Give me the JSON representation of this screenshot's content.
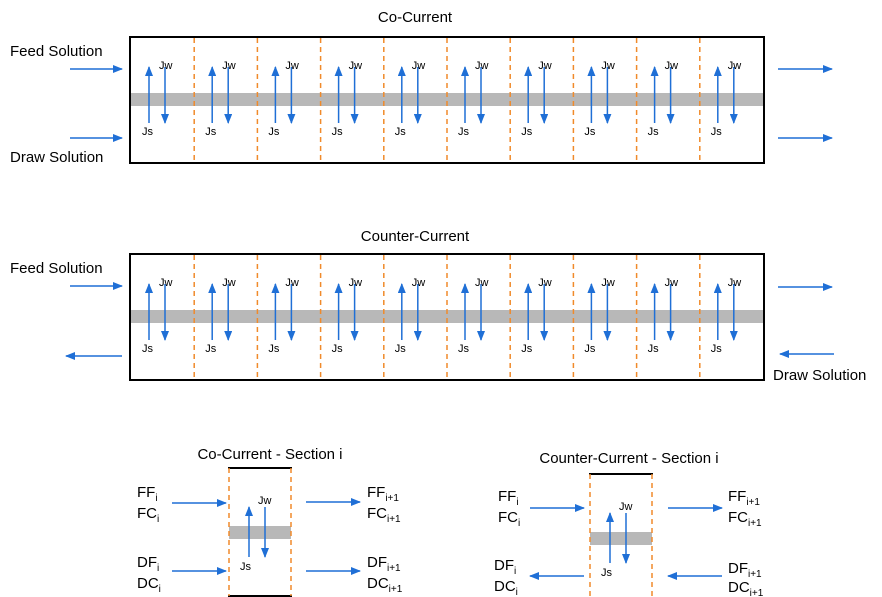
{
  "colors": {
    "arrow": "#1f6fd6",
    "divider": "#f08a2b",
    "membrane": "#b8b8b8",
    "outline": "#000000"
  },
  "co_current": {
    "title": "Co-Current",
    "feed_label": "Feed Solution",
    "draw_label": "Draw Solution",
    "jw_label": "Jw",
    "js_label": "Js",
    "section_count": 10
  },
  "counter_current": {
    "title": "Counter-Current",
    "feed_label": "Feed Solution",
    "draw_label": "Draw Solution",
    "jw_label": "Jw",
    "js_label": "Js",
    "section_count": 10
  },
  "co_section": {
    "title": "Co-Current - Section i",
    "in_feed": [
      "FF",
      "i",
      "FC",
      "i"
    ],
    "out_feed": [
      "FF",
      "i+1",
      "FC",
      "i+1"
    ],
    "in_draw": [
      "DF",
      "i",
      "DC",
      "i"
    ],
    "out_draw": [
      "DF",
      "i+1",
      "DC",
      "i+1"
    ],
    "jw_label": "Jw",
    "js_label": "Js"
  },
  "counter_section": {
    "title": "Counter-Current - Section i",
    "in_feed": [
      "FF",
      "i",
      "FC",
      "i"
    ],
    "out_feed": [
      "FF",
      "i+1",
      "FC",
      "i+1"
    ],
    "out_draw": [
      "DF",
      "i",
      "DC",
      "i"
    ],
    "in_draw": [
      "DF",
      "i+1",
      "DC",
      "i+1"
    ],
    "jw_label": "Jw",
    "js_label": "Js"
  }
}
